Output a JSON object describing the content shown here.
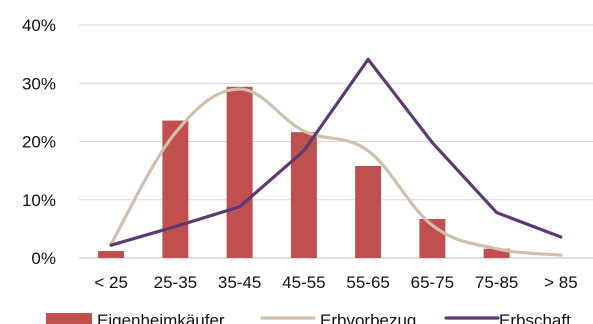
{
  "chart_data": {
    "type": "bar",
    "title": "",
    "xlabel": "",
    "ylabel": "",
    "categories": [
      "< 25",
      "25-35",
      "35-45",
      "45-55",
      "55-65",
      "65-75",
      "75-85",
      "> 85"
    ],
    "y_ticks": [
      "0%",
      "10%",
      "20%",
      "30%",
      "40%"
    ],
    "ylim": [
      0,
      40
    ],
    "y_unit": "%",
    "grid": "horizontal",
    "legend_position": "bottom",
    "series": [
      {
        "name": "Eigenheimkäufer",
        "kind": "bar",
        "color": "#c0504d",
        "values": [
          1.2,
          23.6,
          29.4,
          21.6,
          15.8,
          6.7,
          1.6,
          0.0
        ]
      },
      {
        "name": "Erbvorbezug",
        "kind": "line",
        "color": "#d1bfae",
        "values": [
          2.4,
          21.5,
          29.0,
          21.8,
          18.4,
          5.6,
          1.6,
          0.5
        ]
      },
      {
        "name": "Erbschaft",
        "kind": "line",
        "color": "#5e3a73",
        "values": [
          2.2,
          5.4,
          8.8,
          18.4,
          34.1,
          19.8,
          7.8,
          3.6
        ]
      }
    ]
  }
}
